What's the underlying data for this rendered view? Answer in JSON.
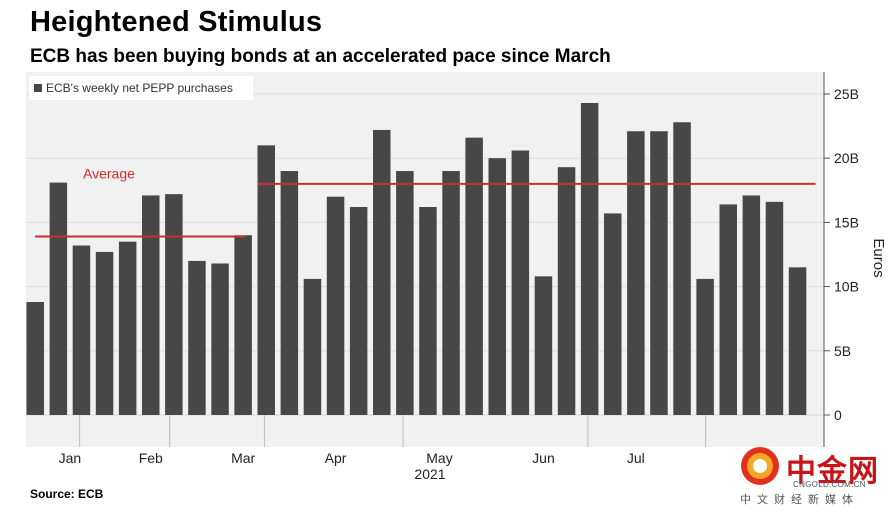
{
  "title": "Heightened Stimulus",
  "subtitle": "ECB has been buying bonds at an accelerated pace since March",
  "source": "Source: ECB",
  "watermark": {
    "name": "中金网",
    "url": "CNGOLD.COM.CN",
    "tagline": "中文财经新媒体"
  },
  "chart_data": {
    "type": "bar",
    "legend": "ECB's weekly net PEPP purchases",
    "legend_position": "top-left",
    "ylabel": "Euros",
    "y_axis_side": "right",
    "ylim": [
      0,
      26
    ],
    "yticks": [
      {
        "value": 0,
        "label": "0"
      },
      {
        "value": 5,
        "label": "5B"
      },
      {
        "value": 10,
        "label": "10B"
      },
      {
        "value": 15,
        "label": "15B"
      },
      {
        "value": 20,
        "label": "20B"
      },
      {
        "value": 25,
        "label": "25B"
      }
    ],
    "year_label": "2021",
    "month_labels": [
      {
        "label": "Jan",
        "at": 1.5
      },
      {
        "label": "Feb",
        "at": 5.0
      },
      {
        "label": "Mar",
        "at": 9.0
      },
      {
        "label": "Apr",
        "at": 13.0
      },
      {
        "label": "May",
        "at": 17.5
      },
      {
        "label": "Jun",
        "at": 22.0
      },
      {
        "label": "Jul",
        "at": 26.0
      }
    ],
    "grid": true,
    "bar_color": "#474747",
    "values": [
      8.8,
      18.1,
      13.2,
      12.7,
      13.5,
      17.1,
      17.2,
      12.0,
      11.8,
      14.0,
      21.0,
      19.0,
      10.6,
      17.0,
      16.2,
      22.2,
      19.0,
      16.2,
      19.0,
      21.6,
      20.0,
      20.6,
      10.8,
      19.3,
      24.3,
      15.7,
      22.1,
      22.1,
      22.8,
      10.6,
      16.4,
      17.1,
      16.6,
      11.5
    ],
    "averages": [
      {
        "label": "Average",
        "value": 13.9,
        "from_index": 0,
        "to_index": 9
      },
      {
        "value": 18.0,
        "from_index": 10,
        "to_index": 33
      }
    ],
    "average_color": "#d12c2c"
  }
}
